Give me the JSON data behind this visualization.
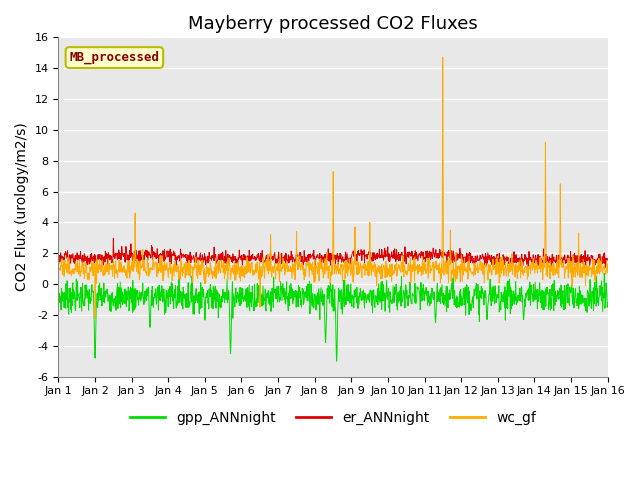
{
  "title": "Mayberry processed CO2 Fluxes",
  "ylabel": "CO2 Flux (urology/m2/s)",
  "ylim": [
    -6,
    16
  ],
  "yticks": [
    -6,
    -4,
    -2,
    0,
    2,
    4,
    6,
    8,
    10,
    12,
    14,
    16
  ],
  "n_points": 1440,
  "n_days": 15,
  "colors": {
    "gpp": "#00dd00",
    "er": "#dd0000",
    "wc": "#ffaa00"
  },
  "legend_labels": [
    "gpp_ANNnight",
    "er_ANNnight",
    "wc_gf"
  ],
  "annotation_text": "MB_processed",
  "annotation_color": "#8b0000",
  "annotation_bg": "#ffffcc",
  "annotation_border": "#bbbb00",
  "background_color": "#e8e8e8",
  "title_fontsize": 13,
  "axis_fontsize": 10,
  "tick_fontsize": 8,
  "legend_fontsize": 10
}
